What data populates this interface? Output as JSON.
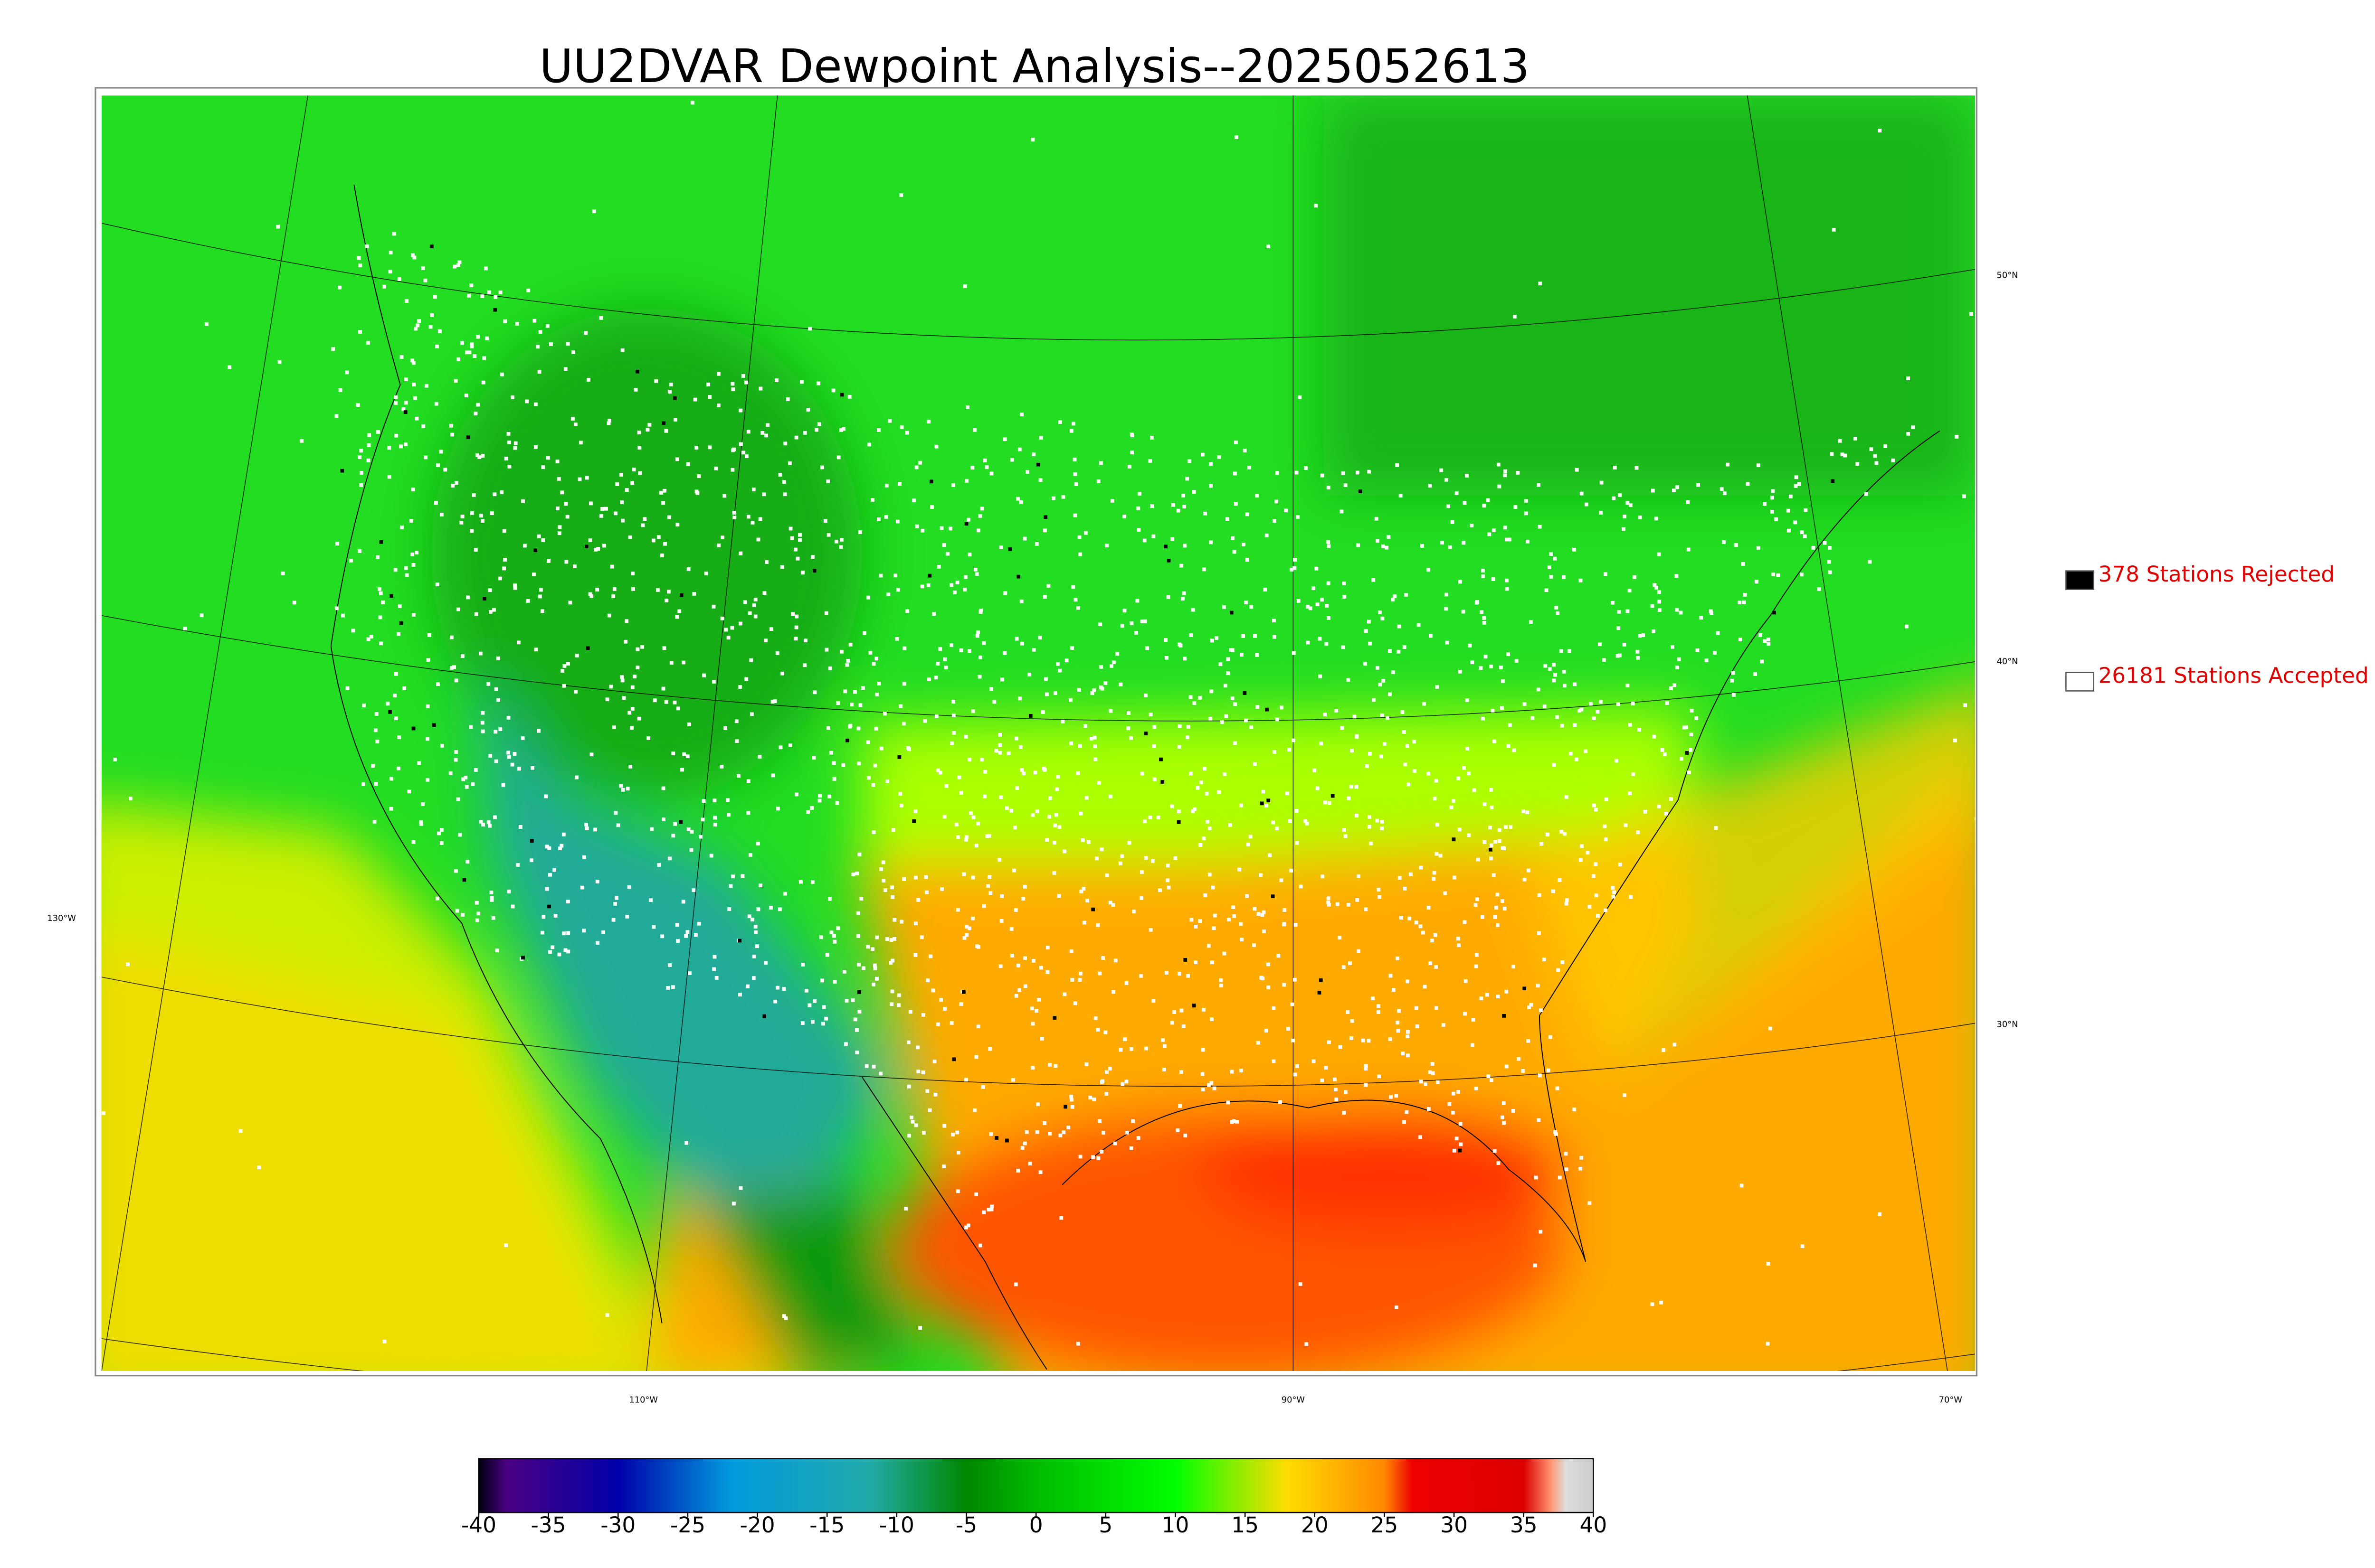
{
  "title": "UU2DVAR Dewpoint Analysis--2025052613",
  "legend": [
    {
      "label": "378 Stations Rejected",
      "color": "#000000"
    },
    {
      "label": "26181 Stations Accepted",
      "color": "#ffffff"
    }
  ],
  "map": {
    "lat_labels": [
      "50°N",
      "40°N",
      "30°N"
    ],
    "lon_labels": [
      "130°W",
      "110°W",
      "90°W",
      "70°W"
    ]
  },
  "colorbar": {
    "lim": [
      -40,
      40
    ],
    "ticks": [
      -40,
      -35,
      -30,
      -25,
      -20,
      -15,
      -10,
      -5,
      0,
      5,
      10,
      15,
      20,
      25,
      30,
      35,
      40
    ],
    "stops": [
      {
        "value": -40,
        "color": "#000010"
      },
      {
        "value": -38,
        "color": "#4b0082"
      },
      {
        "value": -30,
        "color": "#0000aa"
      },
      {
        "value": -22,
        "color": "#0099dd"
      },
      {
        "value": -12,
        "color": "#22aaaa"
      },
      {
        "value": -5,
        "color": "#008800"
      },
      {
        "value": 0,
        "color": "#00bb00"
      },
      {
        "value": 10,
        "color": "#00ff00"
      },
      {
        "value": 18,
        "color": "#ffdd00"
      },
      {
        "value": 25,
        "color": "#ff8800"
      },
      {
        "value": 27,
        "color": "#ee0000"
      },
      {
        "value": 35,
        "color": "#dd0000"
      },
      {
        "value": 37,
        "color": "#ff9977"
      },
      {
        "value": 38,
        "color": "#dddddd"
      },
      {
        "value": 40,
        "color": "#cccccc"
      }
    ]
  }
}
